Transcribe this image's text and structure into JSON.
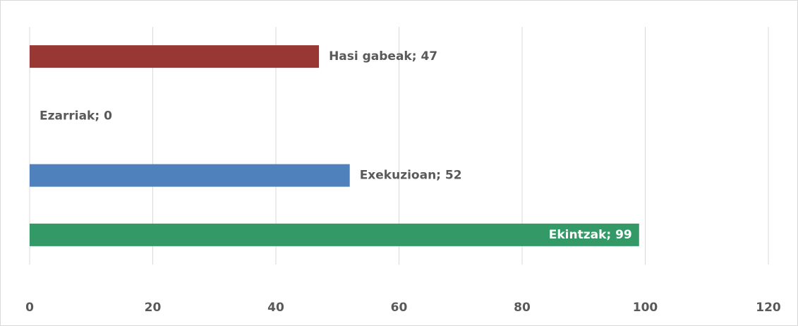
{
  "chart_data": {
    "type": "bar",
    "orientation": "horizontal",
    "values": [
      47,
      0,
      52,
      99
    ],
    "value_labels": [
      "Hasi gabeak; 47",
      "Ezarriak; 0",
      "Exekuzioan; 52",
      "Ekintzak; 99"
    ],
    "colors": [
      "#993735",
      "#7f7f7f",
      "#4f81bd",
      "#339966"
    ],
    "xlim": [
      0,
      120
    ],
    "xticks": [
      0,
      20,
      40,
      60,
      80,
      100,
      120
    ],
    "grid": true
  }
}
